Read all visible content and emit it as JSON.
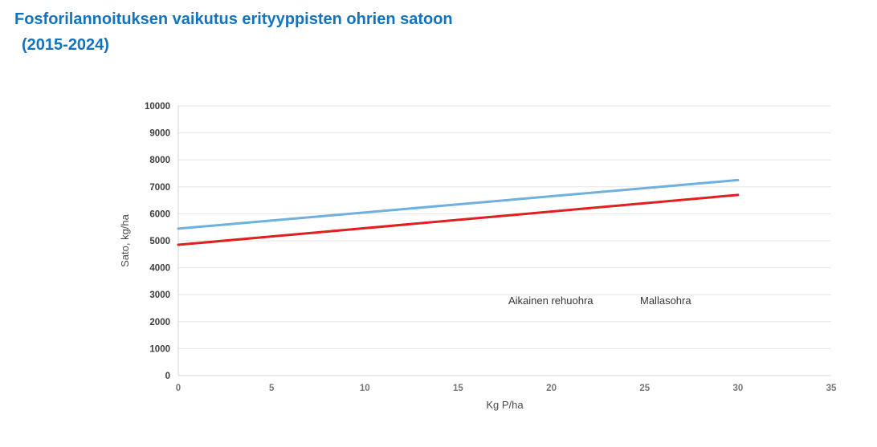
{
  "page": {
    "title_line1": "Fosforilannoituksen vaikutus erityyppisten ohrien satoon",
    "title_line2": "(2015-2024)",
    "title_color": "#1473bd"
  },
  "chart_data": {
    "type": "line",
    "title": "Fosforilannoituksen vaikutus erityyppisten ohrien satoon (2015-2024)",
    "xlabel": "Kg P/ha",
    "ylabel": "Sato, kg/ha",
    "xlim": [
      0,
      35
    ],
    "ylim": [
      0,
      10000
    ],
    "x_ticks": [
      0,
      5,
      10,
      15,
      20,
      25,
      30,
      35
    ],
    "y_ticks": [
      0,
      1000,
      2000,
      3000,
      4000,
      5000,
      6000,
      7000,
      8000,
      9000,
      10000
    ],
    "grid": "horizontal-only",
    "legend_position": "inside-plot, text only, no color keys",
    "series": [
      {
        "name": "Aikainen rehuohra",
        "color": "#6fb0de",
        "x": [
          0,
          30
        ],
        "values": [
          5450,
          7250
        ]
      },
      {
        "name": "Mallasohra",
        "color": "#e01f1f",
        "x": [
          0,
          30
        ],
        "values": [
          4850,
          6700
        ]
      }
    ],
    "colors": {
      "grid_line": "#e6e6e6",
      "axis_line": "#d4d4d4",
      "y_tick_label": "#3c3c3c",
      "x_tick_label": "#757575",
      "axis_title": "#4a4a4a",
      "legend_text": "#343434"
    }
  }
}
